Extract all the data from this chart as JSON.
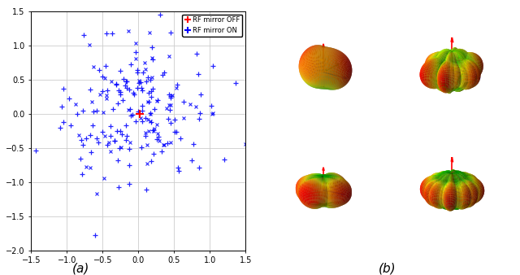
{
  "title_a": "(a)",
  "title_b": "(b)",
  "xlim_a": [
    -1.5,
    1.5
  ],
  "ylim_a": [
    -2.0,
    1.5
  ],
  "xticks_a": [
    -1.5,
    -1.0,
    -0.5,
    0.0,
    0.5,
    1.0,
    1.5
  ],
  "yticks_a": [
    -2.0,
    -1.5,
    -1.0,
    -0.5,
    0.0,
    0.5,
    1.0,
    1.5
  ],
  "legend_off_label": "RF mirror OFF",
  "legend_on_label": "RF mirror ON",
  "off_color": "red",
  "on_color": "blue",
  "bg_color": "white",
  "grid_color": "#cccccc",
  "seed": 42,
  "n_points": 200,
  "cmap_colors": [
    "#00aa00",
    "#00cc00",
    "#88ff00",
    "#ffff00",
    "#ffaa00",
    "#ff5500",
    "#ff0000"
  ],
  "cmap_positions": [
    0.0,
    0.15,
    0.35,
    0.5,
    0.65,
    0.82,
    1.0
  ]
}
